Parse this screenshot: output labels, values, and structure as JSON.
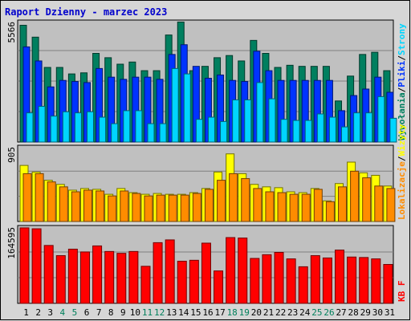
{
  "title": "Raport Dzienny -  marzec 2023",
  "colors": {
    "frame_bg": "#d6d6d6",
    "plot_bg": "#c0c0c0",
    "grid": "#808080",
    "title": "#0000cc",
    "hits": "#007f5f",
    "files": "#0033ff",
    "pages": "#00d5ff",
    "visits": "#ffff00",
    "sites": "#ff8c00",
    "kbf": "#ff0000",
    "day_black": "#000000",
    "day_weekend": "#00805c"
  },
  "chart_data": [
    {
      "type": "bar",
      "panel": "requests",
      "y_max_label": "5566",
      "ylim": [
        0,
        5566
      ],
      "right_labels": [
        {
          "text": "Wywołania",
          "color_key": "hits"
        },
        {
          "text": "/",
          "color_key": "day_black"
        },
        {
          "text": "Pliki",
          "color_key": "files"
        },
        {
          "text": "/",
          "color_key": "day_black"
        },
        {
          "text": "Strony",
          "color_key": "pages"
        }
      ],
      "categories": [
        "1",
        "2",
        "3",
        "4",
        "5",
        "6",
        "7",
        "8",
        "9",
        "10",
        "11",
        "12",
        "13",
        "14",
        "15",
        "16",
        "17",
        "18",
        "19",
        "20",
        "21",
        "22",
        "23",
        "24",
        "25",
        "26",
        "27",
        "28",
        "29",
        "30",
        "31"
      ],
      "series": [
        {
          "name": "Wywołania",
          "color_key": "hits",
          "values": [
            5400,
            4850,
            3450,
            3450,
            3150,
            3200,
            4100,
            3900,
            3600,
            3700,
            3300,
            3300,
            4950,
            5550,
            3300,
            3500,
            3900,
            4000,
            3750,
            4700,
            4100,
            3450,
            3550,
            3500,
            3500,
            3500,
            1900,
            3050,
            4050,
            4150,
            3300
          ]
        },
        {
          "name": "Pliki",
          "color_key": "files",
          "values": [
            4400,
            3750,
            2550,
            2850,
            2800,
            2750,
            3400,
            3000,
            2900,
            3000,
            3000,
            2900,
            4050,
            4500,
            3500,
            2950,
            3100,
            2850,
            2800,
            4200,
            3300,
            2850,
            2850,
            2850,
            2850,
            2850,
            1450,
            2150,
            2450,
            3000,
            2300
          ]
        },
        {
          "name": "Strony",
          "color_key": "pages",
          "values": [
            1350,
            1650,
            1200,
            1400,
            1350,
            1400,
            1150,
            850,
            1450,
            1450,
            850,
            850,
            3400,
            3150,
            1050,
            1150,
            950,
            1950,
            1950,
            2750,
            2000,
            1050,
            1000,
            1000,
            1300,
            1150,
            700,
            1350,
            1350,
            2100,
            1100
          ]
        }
      ]
    },
    {
      "type": "bar",
      "panel": "visits",
      "y_max_label": "905",
      "ylim": [
        0,
        905
      ],
      "right_labels": [
        {
          "text": "Lokalizacje",
          "color_key": "sites"
        },
        {
          "text": "/",
          "color_key": "day_black"
        },
        {
          "text": "Wizyty",
          "color_key": "visits"
        }
      ],
      "categories": [
        "1",
        "2",
        "3",
        "4",
        "5",
        "6",
        "7",
        "8",
        "9",
        "10",
        "11",
        "12",
        "13",
        "14",
        "15",
        "16",
        "17",
        "18",
        "19",
        "20",
        "21",
        "22",
        "23",
        "24",
        "25",
        "26",
        "27",
        "28",
        "29",
        "30",
        "31"
      ],
      "series": [
        {
          "name": "Wizyty",
          "color_key": "visits",
          "values": [
            680,
            600,
            500,
            450,
            380,
            400,
            390,
            330,
            400,
            350,
            330,
            340,
            330,
            330,
            350,
            400,
            600,
            820,
            580,
            450,
            420,
            410,
            360,
            350,
            400,
            250,
            460,
            720,
            590,
            560,
            430
          ]
        },
        {
          "name": "Lokalizacje",
          "color_key": "sites",
          "values": [
            580,
            580,
            480,
            420,
            360,
            380,
            370,
            310,
            370,
            340,
            310,
            320,
            320,
            320,
            340,
            390,
            500,
            580,
            520,
            400,
            360,
            350,
            330,
            330,
            390,
            240,
            420,
            610,
            530,
            430,
            400
          ]
        }
      ]
    },
    {
      "type": "bar",
      "panel": "traffic",
      "y_max_label": "164595",
      "ylim": [
        0,
        164595
      ],
      "right_labels": [
        {
          "text": "KB F",
          "color_key": "kbf"
        }
      ],
      "categories": [
        "1",
        "2",
        "3",
        "4",
        "5",
        "6",
        "7",
        "8",
        "9",
        "10",
        "11",
        "12",
        "13",
        "14",
        "15",
        "16",
        "17",
        "18",
        "19",
        "20",
        "21",
        "22",
        "23",
        "24",
        "25",
        "26",
        "27",
        "28",
        "29",
        "30",
        "31"
      ],
      "series": [
        {
          "name": "KB F",
          "color_key": "kbf",
          "values": [
            163000,
            161000,
            125000,
            103000,
            117000,
            111000,
            124000,
            112000,
            108000,
            112000,
            80000,
            131000,
            137000,
            91000,
            93000,
            130000,
            70000,
            142000,
            141000,
            97000,
            105000,
            110000,
            96000,
            79000,
            103000,
            98000,
            115000,
            100000,
            99000,
            96000,
            84000
          ]
        }
      ]
    }
  ],
  "day_labels": [
    {
      "text": "1",
      "weekend": false
    },
    {
      "text": "2",
      "weekend": false
    },
    {
      "text": "3",
      "weekend": false
    },
    {
      "text": "4",
      "weekend": true
    },
    {
      "text": "5",
      "weekend": true
    },
    {
      "text": "6",
      "weekend": false
    },
    {
      "text": "7",
      "weekend": false
    },
    {
      "text": "8",
      "weekend": false
    },
    {
      "text": "9",
      "weekend": false
    },
    {
      "text": "10",
      "weekend": false
    },
    {
      "text": "11",
      "weekend": true
    },
    {
      "text": "12",
      "weekend": true
    },
    {
      "text": "13",
      "weekend": false
    },
    {
      "text": "14",
      "weekend": false
    },
    {
      "text": "15",
      "weekend": false
    },
    {
      "text": "16",
      "weekend": false
    },
    {
      "text": "17",
      "weekend": false
    },
    {
      "text": "18",
      "weekend": true
    },
    {
      "text": "19",
      "weekend": true
    },
    {
      "text": "20",
      "weekend": false
    },
    {
      "text": "21",
      "weekend": false
    },
    {
      "text": "22",
      "weekend": false
    },
    {
      "text": "23",
      "weekend": false
    },
    {
      "text": "24",
      "weekend": false
    },
    {
      "text": "25",
      "weekend": true
    },
    {
      "text": "26",
      "weekend": true
    },
    {
      "text": "27",
      "weekend": false
    },
    {
      "text": "28",
      "weekend": false
    },
    {
      "text": "29",
      "weekend": false
    },
    {
      "text": "30",
      "weekend": false
    },
    {
      "text": "31",
      "weekend": false
    }
  ]
}
